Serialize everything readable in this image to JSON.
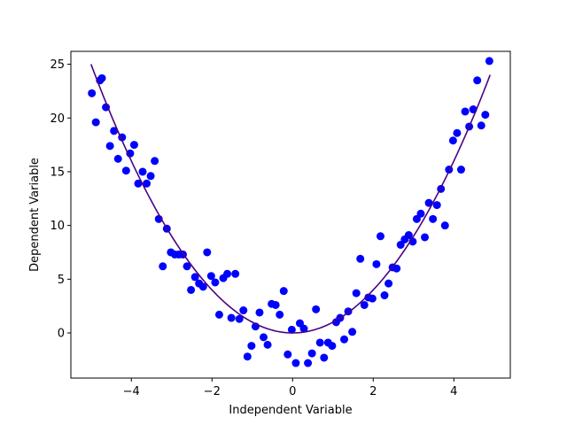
{
  "chart_data": {
    "type": "scatter",
    "title": "",
    "xlabel": "Independent Variable",
    "ylabel": "Dependent Variable",
    "xlim": [
      -5.5,
      5.4
    ],
    "ylim": [
      -4.2,
      26.2
    ],
    "xticks": [
      -4,
      -2,
      0,
      2,
      4
    ],
    "yticks": [
      0,
      5,
      10,
      15,
      20,
      25
    ],
    "grid": false,
    "legend": "none",
    "colors": {
      "points": "#0000ff",
      "fit_line": "#4b0082"
    },
    "series": [
      {
        "kind": "scatter",
        "points": [
          [
            -4.98,
            22.3
          ],
          [
            -4.88,
            19.6
          ],
          [
            -4.78,
            23.5
          ],
          [
            -4.73,
            23.7
          ],
          [
            -4.63,
            21.0
          ],
          [
            -4.53,
            17.4
          ],
          [
            -4.43,
            18.8
          ],
          [
            -4.33,
            16.2
          ],
          [
            -4.23,
            18.2
          ],
          [
            -4.13,
            15.1
          ],
          [
            -4.03,
            16.7
          ],
          [
            -3.93,
            17.5
          ],
          [
            -3.83,
            13.9
          ],
          [
            -3.72,
            15.0
          ],
          [
            -3.62,
            13.9
          ],
          [
            -3.52,
            14.6
          ],
          [
            -3.42,
            16.0
          ],
          [
            -3.32,
            10.6
          ],
          [
            -3.22,
            6.2
          ],
          [
            -3.12,
            9.7
          ],
          [
            -3.02,
            7.5
          ],
          [
            -2.92,
            7.3
          ],
          [
            -2.82,
            7.3
          ],
          [
            -2.72,
            7.3
          ],
          [
            -2.62,
            6.2
          ],
          [
            -2.52,
            4.0
          ],
          [
            -2.42,
            5.2
          ],
          [
            -2.32,
            4.6
          ],
          [
            -2.22,
            4.3
          ],
          [
            -2.12,
            7.5
          ],
          [
            -2.02,
            5.3
          ],
          [
            -1.92,
            4.7
          ],
          [
            -1.82,
            1.7
          ],
          [
            -1.72,
            5.1
          ],
          [
            -1.62,
            5.5
          ],
          [
            -1.52,
            1.4
          ],
          [
            -1.42,
            5.5
          ],
          [
            -1.32,
            1.3
          ],
          [
            -1.22,
            2.1
          ],
          [
            -1.12,
            -2.2
          ],
          [
            -1.02,
            -1.2
          ],
          [
            -0.92,
            0.6
          ],
          [
            -0.82,
            1.9
          ],
          [
            -0.72,
            -0.4
          ],
          [
            -0.62,
            -1.1
          ],
          [
            -0.52,
            2.7
          ],
          [
            -0.42,
            2.6
          ],
          [
            -0.32,
            1.7
          ],
          [
            -0.22,
            3.9
          ],
          [
            -0.12,
            -2.0
          ],
          [
            -0.02,
            0.3
          ],
          [
            0.08,
            -2.8
          ],
          [
            0.18,
            0.9
          ],
          [
            0.28,
            0.4
          ],
          [
            0.38,
            -2.8
          ],
          [
            0.48,
            -1.9
          ],
          [
            0.58,
            2.2
          ],
          [
            0.68,
            -0.9
          ],
          [
            0.78,
            -2.3
          ],
          [
            0.88,
            -0.9
          ],
          [
            0.98,
            -1.2
          ],
          [
            1.08,
            1.0
          ],
          [
            1.18,
            1.4
          ],
          [
            1.28,
            -0.6
          ],
          [
            1.38,
            2.0
          ],
          [
            1.48,
            0.1
          ],
          [
            1.58,
            3.7
          ],
          [
            1.68,
            6.9
          ],
          [
            1.78,
            2.6
          ],
          [
            1.88,
            3.3
          ],
          [
            1.98,
            3.2
          ],
          [
            2.08,
            6.4
          ],
          [
            2.18,
            9.0
          ],
          [
            2.28,
            3.5
          ],
          [
            2.38,
            4.6
          ],
          [
            2.48,
            6.1
          ],
          [
            2.58,
            6.0
          ],
          [
            2.68,
            8.2
          ],
          [
            2.78,
            8.7
          ],
          [
            2.88,
            9.1
          ],
          [
            2.98,
            8.5
          ],
          [
            3.08,
            10.6
          ],
          [
            3.18,
            11.1
          ],
          [
            3.28,
            8.9
          ],
          [
            3.38,
            12.1
          ],
          [
            3.48,
            10.6
          ],
          [
            3.58,
            11.9
          ],
          [
            3.68,
            13.4
          ],
          [
            3.78,
            10.0
          ],
          [
            3.88,
            15.2
          ],
          [
            3.98,
            17.9
          ],
          [
            4.08,
            18.6
          ],
          [
            4.18,
            15.2
          ],
          [
            4.28,
            20.6
          ],
          [
            4.38,
            19.2
          ],
          [
            4.48,
            20.8
          ],
          [
            4.58,
            23.5
          ],
          [
            4.68,
            19.3
          ],
          [
            4.78,
            20.3
          ],
          [
            4.88,
            25.3
          ]
        ]
      },
      {
        "kind": "line",
        "function": "y = x^2",
        "x_range": [
          -5.0,
          4.9
        ]
      }
    ]
  }
}
